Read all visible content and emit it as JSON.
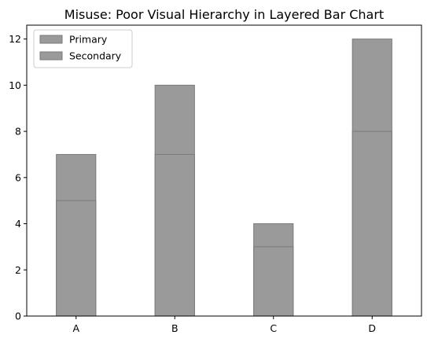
{
  "chart_data": {
    "type": "bar",
    "title": "Misuse: Poor Visual Hierarchy in Layered Bar Chart",
    "xlabel": "",
    "ylabel": "",
    "categories": [
      "A",
      "B",
      "C",
      "D"
    ],
    "series": [
      {
        "name": "Primary",
        "values": [
          5,
          7,
          3,
          8
        ],
        "color": "#9a9a9a"
      },
      {
        "name": "Secondary",
        "values": [
          7,
          10,
          4,
          12
        ],
        "color": "#9a9a9a"
      }
    ],
    "ylim": [
      0,
      12.6
    ],
    "yticks": [
      0,
      2,
      4,
      6,
      8,
      10,
      12
    ],
    "grid": false,
    "legend_position": "top-left",
    "edge_color": "#7a7a7a"
  }
}
